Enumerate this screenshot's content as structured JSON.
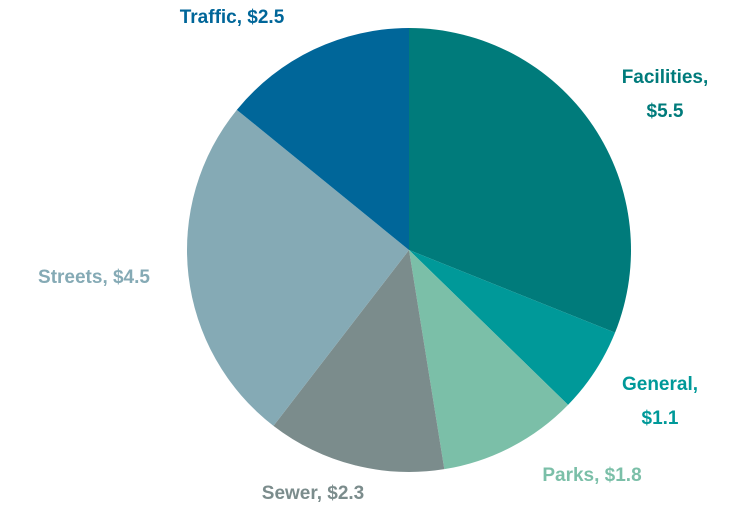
{
  "chart_data": {
    "type": "pie",
    "categories": [
      "Facilities",
      "General",
      "Parks",
      "Sewer",
      "Streets",
      "Traffic"
    ],
    "values": [
      5.5,
      1.1,
      1.8,
      2.3,
      4.5,
      2.5
    ],
    "value_labels": [
      "Facilities, $5.5",
      "General, $1.1",
      "Parks, $1.8",
      "Sewer, $2.3",
      "Streets, $4.5",
      "Traffic, $2.5"
    ],
    "colors": [
      "#007b7b",
      "#009999",
      "#7bbfa8",
      "#7b8c8c",
      "#85aab5",
      "#006699"
    ]
  }
}
